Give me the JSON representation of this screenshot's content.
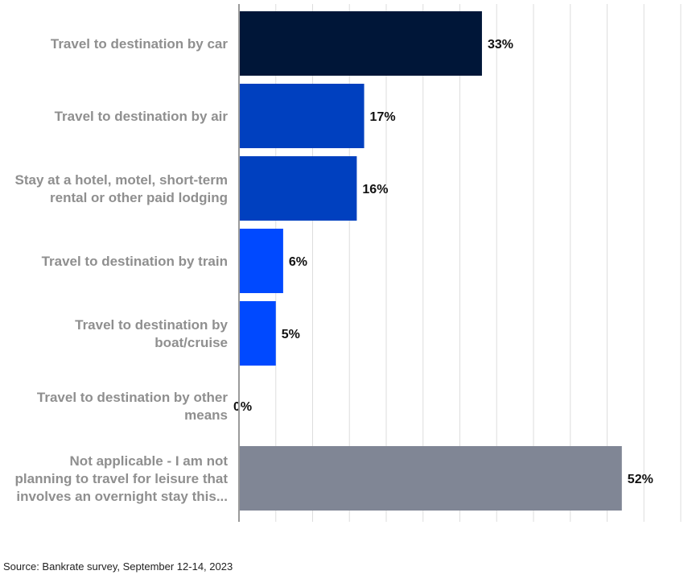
{
  "chart_data": {
    "type": "bar",
    "orientation": "horizontal",
    "categories": [
      [
        "Travel to destination by car"
      ],
      [
        "Travel to destination by air"
      ],
      [
        "Stay at a hotel, motel, short-term",
        "rental or other paid lodging"
      ],
      [
        "Travel to destination by train"
      ],
      [
        "Travel to destination by",
        "boat/cruise"
      ],
      [
        "Travel to destination by other",
        "means"
      ],
      [
        "Not applicable - I am not",
        "planning to travel for leisure that",
        "involves an overnight stay this..."
      ]
    ],
    "values": [
      33,
      17,
      16,
      6,
      5,
      0,
      52
    ],
    "value_labels": [
      "33%",
      "17%",
      "16%",
      "6%",
      "5%",
      "0%",
      "52%"
    ],
    "colors": [
      "#001638",
      "#0040bf",
      "#0040bf",
      "#0049ff",
      "#0049ff",
      "#0049ff",
      "#808695"
    ],
    "xlim": [
      0,
      60
    ],
    "grid_step": 5,
    "grid": true,
    "gridline_color": "#dddddd",
    "axis_color": "#9a9a9a",
    "title": "",
    "xlabel": "",
    "ylabel": ""
  },
  "source": "Source: Bankrate survey, September 12-14, 2023"
}
